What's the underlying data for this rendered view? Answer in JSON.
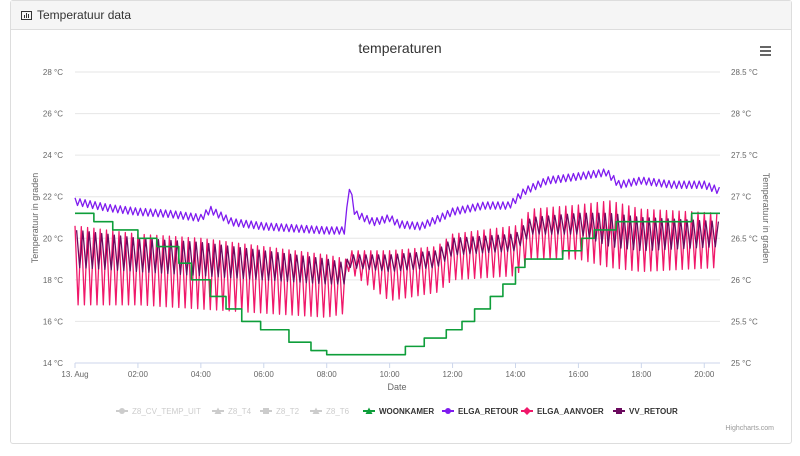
{
  "panel": {
    "title": "Temperatuur data",
    "icon": "bar-chart-icon"
  },
  "menu_icon": "hamburger-menu-icon",
  "credits": "Highcharts.com",
  "chart_data": {
    "type": "line",
    "title": "temperaturen",
    "xlabel": "Date",
    "ylabel": "Temperatuur in graden",
    "ylabel_right": "Temperatuur in graden",
    "ylim": [
      14,
      28
    ],
    "ylim_right": [
      25,
      28.5
    ],
    "yticks": [
      "14 °C",
      "16 °C",
      "18 °C",
      "20 °C",
      "22 °C",
      "24 °C",
      "26 °C",
      "28 °C"
    ],
    "yticks_right": [
      "25 °C",
      "25.5 °C",
      "26 °C",
      "26.5 °C",
      "27 °C",
      "27.5 °C",
      "28 °C",
      "28.5 °C"
    ],
    "xticks": [
      "13. Aug",
      "02:00",
      "04:00",
      "06:00",
      "08:00",
      "10:00",
      "12:00",
      "14:00",
      "16:00",
      "18:00",
      "20:00"
    ],
    "xlim_hours": [
      0,
      20.5
    ],
    "grid": true,
    "legend": "bottom-center",
    "legend_items": [
      {
        "name": "Z8_CV_TEMP_UIT",
        "color": "#cccccc",
        "visible": false,
        "marker": "circle"
      },
      {
        "name": "Z8_T4",
        "color": "#cccccc",
        "visible": false,
        "marker": "triangle"
      },
      {
        "name": "Z8_T2",
        "color": "#cccccc",
        "visible": false,
        "marker": "square"
      },
      {
        "name": "Z8_T6",
        "color": "#cccccc",
        "visible": false,
        "marker": "triangle"
      },
      {
        "name": "WOONKAMER",
        "color": "#0e9e3a",
        "visible": true,
        "marker": "triangle"
      },
      {
        "name": "ELGA_RETOUR",
        "color": "#7f1bef",
        "visible": true,
        "marker": "circle"
      },
      {
        "name": "ELGA_AANVOER",
        "color": "#f0186a",
        "visible": true,
        "marker": "diamond"
      },
      {
        "name": "VV_RETOUR",
        "color": "#6b0a5e",
        "visible": true,
        "marker": "square"
      }
    ],
    "series": [
      {
        "name": "WOONKAMER",
        "color": "#0e9e3a",
        "step": true,
        "points": [
          [
            0,
            21.2
          ],
          [
            0.6,
            20.8
          ],
          [
            1.2,
            20.4
          ],
          [
            2,
            20.0
          ],
          [
            2.6,
            19.6
          ],
          [
            3.3,
            18.8
          ],
          [
            3.7,
            18.0
          ],
          [
            4.3,
            17.2
          ],
          [
            4.8,
            16.6
          ],
          [
            5.3,
            16.0
          ],
          [
            5.9,
            15.6
          ],
          [
            6.8,
            15.0
          ],
          [
            7.5,
            14.6
          ],
          [
            8,
            14.4
          ],
          [
            9,
            14.4
          ],
          [
            10,
            14.4
          ],
          [
            10.5,
            14.8
          ],
          [
            11.1,
            15.2
          ],
          [
            11.8,
            15.6
          ],
          [
            12.3,
            16.0
          ],
          [
            12.7,
            16.6
          ],
          [
            13.2,
            17.2
          ],
          [
            13.6,
            17.8
          ],
          [
            14.0,
            18.6
          ],
          [
            14.3,
            19.0
          ],
          [
            15.5,
            19.4
          ],
          [
            16.1,
            20.0
          ],
          [
            16.5,
            20.4
          ],
          [
            17.2,
            20.8
          ],
          [
            19.6,
            21.2
          ],
          [
            20.5,
            21.2
          ]
        ]
      },
      {
        "name": "ELGA_RETOUR",
        "color": "#7f1bef",
        "points": [
          [
            0,
            21.8
          ],
          [
            1,
            21.5
          ],
          [
            2,
            21.3
          ],
          [
            3,
            21.2
          ],
          [
            4,
            21.0
          ],
          [
            4.3,
            21.4
          ],
          [
            5,
            20.8
          ],
          [
            6,
            20.6
          ],
          [
            7,
            20.5
          ],
          [
            8,
            20.4
          ],
          [
            8.6,
            20.4
          ],
          [
            8.7,
            22.7
          ],
          [
            8.9,
            21.2
          ],
          [
            9.5,
            20.8
          ],
          [
            10,
            21.0
          ],
          [
            10.3,
            20.7
          ],
          [
            11,
            20.6
          ],
          [
            11.6,
            21.0
          ],
          [
            12,
            21.3
          ],
          [
            13,
            21.6
          ],
          [
            13.8,
            21.6
          ],
          [
            14.3,
            22.3
          ],
          [
            15,
            22.8
          ],
          [
            16,
            23.0
          ],
          [
            16.9,
            23.2
          ],
          [
            17.3,
            22.6
          ],
          [
            18,
            22.8
          ],
          [
            19,
            22.6
          ],
          [
            20,
            22.6
          ],
          [
            20.5,
            22.3
          ]
        ]
      },
      {
        "name": "ELGA_AANVOER",
        "color": "#f0186a",
        "oscillating": true,
        "upper": [
          [
            0,
            20.6
          ],
          [
            2,
            20.2
          ],
          [
            4,
            20.0
          ],
          [
            6,
            19.6
          ],
          [
            8,
            19.2
          ],
          [
            8.6,
            19.0
          ],
          [
            8.7,
            19.4
          ],
          [
            10,
            19.4
          ],
          [
            11.5,
            19.6
          ],
          [
            12,
            20.2
          ],
          [
            14,
            20.6
          ],
          [
            14.5,
            21.4
          ],
          [
            16,
            21.6
          ],
          [
            17,
            21.8
          ],
          [
            18,
            21.4
          ],
          [
            20.5,
            21.2
          ]
        ],
        "lower": [
          [
            0,
            16.8
          ],
          [
            2,
            16.8
          ],
          [
            4,
            16.6
          ],
          [
            6,
            16.4
          ],
          [
            8,
            16.2
          ],
          [
            8.6,
            16.4
          ],
          [
            8.7,
            18.4
          ],
          [
            10,
            17.0
          ],
          [
            11.5,
            17.4
          ],
          [
            12,
            18.0
          ],
          [
            14,
            18.2
          ],
          [
            14.5,
            19.0
          ],
          [
            16,
            19.0
          ],
          [
            17,
            18.6
          ],
          [
            18,
            18.4
          ],
          [
            20.5,
            18.6
          ]
        ]
      },
      {
        "name": "VV_RETOUR",
        "color": "#6b0a5e",
        "oscillating": true,
        "upper": [
          [
            0,
            20.4
          ],
          [
            2,
            20.0
          ],
          [
            4,
            19.8
          ],
          [
            6,
            19.4
          ],
          [
            8,
            19.0
          ],
          [
            8.6,
            18.8
          ],
          [
            8.7,
            19.2
          ],
          [
            10,
            19.2
          ],
          [
            11.5,
            19.4
          ],
          [
            12,
            20.0
          ],
          [
            14,
            20.2
          ],
          [
            14.5,
            21.0
          ],
          [
            16,
            21.2
          ],
          [
            17,
            21.2
          ],
          [
            18,
            21.0
          ],
          [
            20.5,
            20.8
          ]
        ],
        "lower": [
          [
            0,
            18.6
          ],
          [
            2,
            18.4
          ],
          [
            4,
            18.2
          ],
          [
            6,
            18.0
          ],
          [
            8,
            17.8
          ],
          [
            8.6,
            17.8
          ],
          [
            8.7,
            18.6
          ],
          [
            10,
            18.4
          ],
          [
            11.5,
            18.6
          ],
          [
            12,
            19.2
          ],
          [
            14,
            19.4
          ],
          [
            14.5,
            20.2
          ],
          [
            16,
            20.2
          ],
          [
            17,
            19.6
          ],
          [
            18,
            19.4
          ],
          [
            20.5,
            19.6
          ]
        ]
      }
    ]
  }
}
